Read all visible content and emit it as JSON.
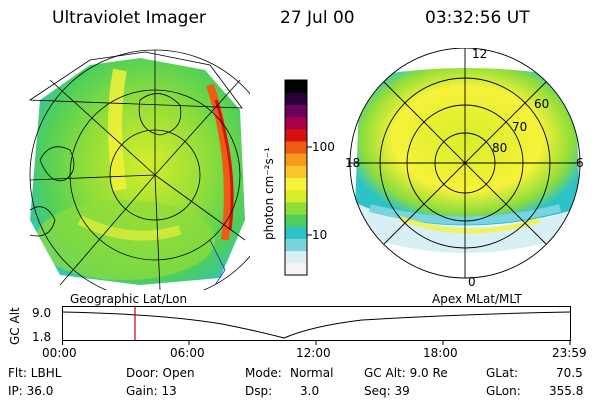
{
  "header": {
    "instrument": "Ultraviolet Imager",
    "date": "27 Jul 00",
    "time": "03:32:56 UT"
  },
  "panels": {
    "left_label": "Geographic Lat/Lon",
    "right_label": "Apex MLat/MLT",
    "right_mlt_ticks": [
      "12",
      "18",
      "6",
      "0"
    ],
    "right_mlat_ticks": [
      "60",
      "70",
      "80"
    ]
  },
  "colorbar": {
    "unit_label": "photon cm⁻²s⁻¹",
    "tick_100": "100",
    "tick_10": "10",
    "colors": [
      "#f4f4f4",
      "#d8f0f4",
      "#7ad4e0",
      "#2cc2c8",
      "#4fcf5a",
      "#8fdd3a",
      "#d6ee2a",
      "#f7f23a",
      "#f9c52a",
      "#f59a1c",
      "#ee5c14",
      "#d81010",
      "#a8004a",
      "#6a0060",
      "#2a003a",
      "#000000"
    ]
  },
  "timeline": {
    "ylabel": "GC Alt",
    "y_top": "9.0",
    "y_bottom": "1.8",
    "x_ticks": [
      "00:00",
      "06:00",
      "12:00",
      "18:00",
      "23:59"
    ]
  },
  "info": {
    "flt": "Flt: LBHL",
    "ip": "IP: 36.0",
    "door": "Door: Open",
    "gain": "Gain: 13",
    "mode_label": "Mode:",
    "mode_value": "Normal",
    "dsp_label": "Dsp:",
    "dsp_value": "3.0",
    "gcalt": "GC Alt: 9.0 Re",
    "seq": "Seq: 39",
    "glat_label": "GLat:",
    "glat_value": "70.5",
    "glon_label": "GLon:",
    "glon_value": "355.8"
  }
}
